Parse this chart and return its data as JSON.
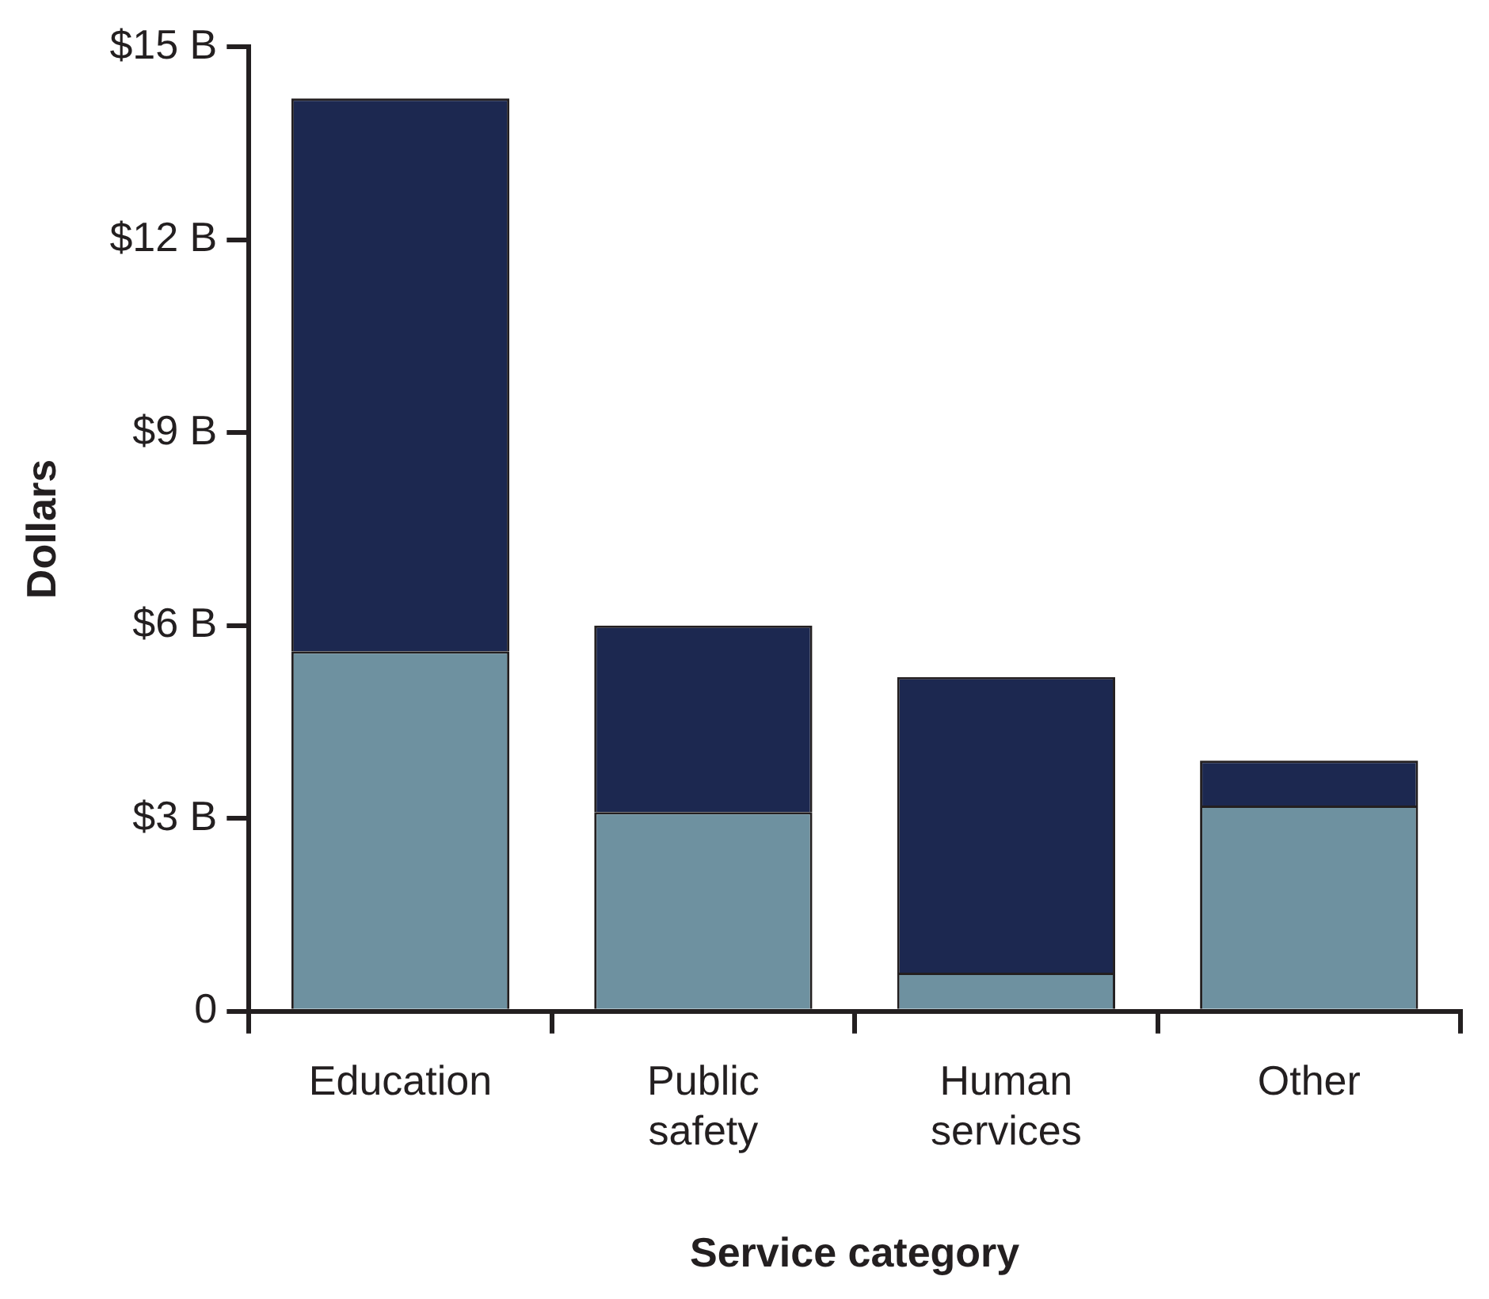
{
  "chart_data": {
    "type": "bar",
    "stacked": true,
    "xlabel": "Service category",
    "ylabel": "Dollars",
    "categories": [
      "Education",
      "Public safety",
      "Human services",
      "Other"
    ],
    "series": [
      {
        "color": "#6e91a0",
        "values": [
          5.6,
          3.1,
          0.6,
          3.2
        ]
      },
      {
        "color": "#1c2850",
        "values": [
          8.6,
          2.9,
          4.6,
          0.7
        ]
      }
    ],
    "ylim": [
      0,
      15
    ],
    "yticks": [
      {
        "value": 0,
        "label": "0"
      },
      {
        "value": 3,
        "label": "$3 B"
      },
      {
        "value": 6,
        "label": "$6 B"
      },
      {
        "value": 9,
        "label": "$9 B"
      },
      {
        "value": 12,
        "label": "$12 B"
      },
      {
        "value": 15,
        "label": "$15 B"
      }
    ],
    "grid": false,
    "legend": false
  }
}
